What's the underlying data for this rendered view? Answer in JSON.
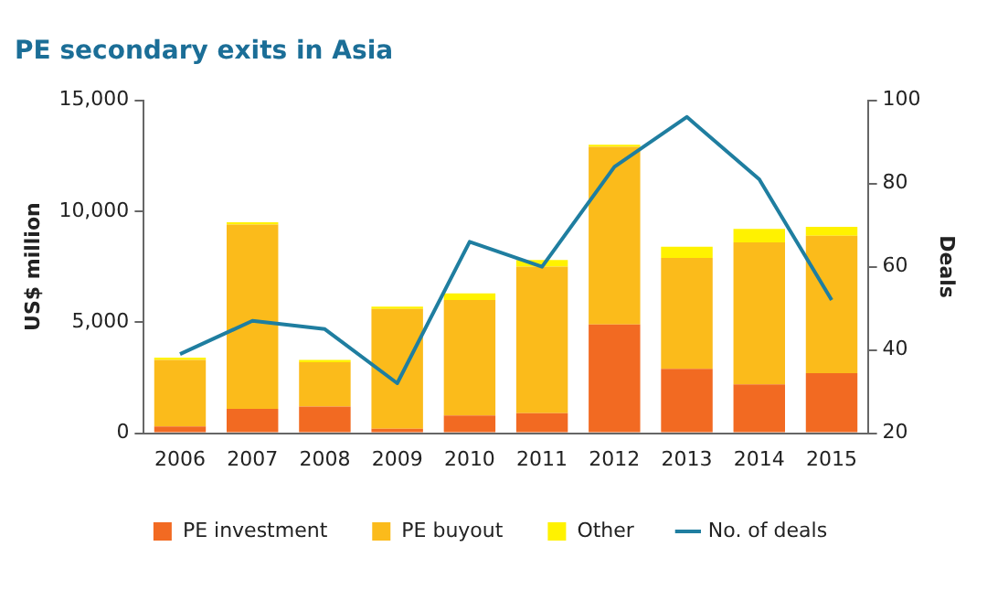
{
  "chart_data": {
    "type": "bar",
    "title": "PE secondary exits in Asia",
    "ylabel": "US$ million",
    "y2label": "Deals",
    "categories": [
      "2006",
      "2007",
      "2008",
      "2009",
      "2010",
      "2011",
      "2012",
      "2013",
      "2014",
      "2015"
    ],
    "stacked": true,
    "series": [
      {
        "name": "PE investment",
        "color": "#f26a22",
        "values": [
          300,
          1100,
          1200,
          200,
          800,
          900,
          4900,
          2900,
          2200,
          2700
        ]
      },
      {
        "name": "PE buyout",
        "color": "#fbbb1b",
        "values": [
          3000,
          8300,
          2000,
          5400,
          5200,
          6600,
          8000,
          5000,
          6400,
          6200
        ]
      },
      {
        "name": "Other",
        "color": "#fff200",
        "values": [
          100,
          100,
          100,
          100,
          300,
          300,
          100,
          500,
          600,
          400
        ]
      },
      {
        "name": "No. of deals",
        "type": "line",
        "axis": "y2",
        "color": "#1f7ea0",
        "marker": "none",
        "values": [
          39,
          47,
          45,
          32,
          66,
          60,
          84,
          96,
          81,
          52
        ]
      }
    ],
    "ylim": [
      0,
      15000
    ],
    "yticks": [
      0,
      {
        "value": 5000,
        "label": "5,000"
      },
      {
        "value": 10000,
        "label": "10,000"
      },
      {
        "value": 15000,
        "label": "15,000"
      }
    ],
    "y2lim": [
      20,
      100
    ],
    "y2ticks": [
      20,
      40,
      60,
      80,
      100
    ],
    "grid": false,
    "legend": "bottom"
  }
}
